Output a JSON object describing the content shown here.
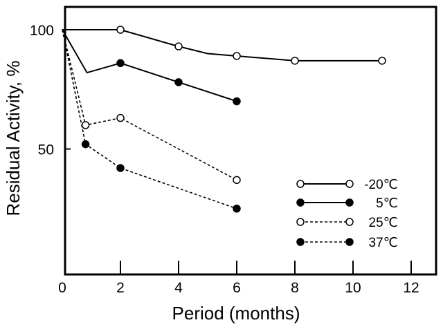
{
  "chart_data": {
    "type": "line",
    "title": "",
    "xlabel": "Period (months)",
    "ylabel": "Residual Activity, %",
    "xlim": [
      0,
      12.5
    ],
    "ylim": [
      0,
      103
    ],
    "x_ticks": [
      0,
      2,
      4,
      6,
      8,
      10,
      12
    ],
    "y_ticks": [
      50,
      100
    ],
    "grid": false,
    "legend_position": "bottom-right",
    "series": [
      {
        "name": "-20℃",
        "line_style": "solid",
        "marker": "open-circle",
        "points": [
          [
            0,
            100
          ],
          [
            2,
            100
          ],
          [
            4,
            93
          ],
          [
            5,
            90
          ],
          [
            6,
            89
          ],
          [
            8,
            87
          ],
          [
            11,
            87
          ]
        ],
        "marked": [
          false,
          true,
          true,
          false,
          true,
          true,
          true
        ]
      },
      {
        "name": "5℃",
        "line_style": "solid",
        "marker": "filled-circle",
        "points": [
          [
            0,
            100
          ],
          [
            0.85,
            82
          ],
          [
            2,
            86
          ],
          [
            4,
            78
          ],
          [
            6,
            70
          ]
        ],
        "marked": [
          false,
          false,
          true,
          true,
          true
        ]
      },
      {
        "name": "25℃",
        "line_style": "dashed",
        "marker": "open-circle",
        "points": [
          [
            0,
            100
          ],
          [
            0.8,
            60
          ],
          [
            2,
            63
          ],
          [
            6,
            37
          ]
        ],
        "marked": [
          false,
          true,
          true,
          true
        ]
      },
      {
        "name": "37℃",
        "line_style": "dashed",
        "marker": "filled-circle",
        "points": [
          [
            0,
            100
          ],
          [
            0.8,
            52
          ],
          [
            2,
            42
          ],
          [
            6,
            25
          ]
        ],
        "marked": [
          false,
          true,
          true,
          true
        ]
      }
    ]
  }
}
